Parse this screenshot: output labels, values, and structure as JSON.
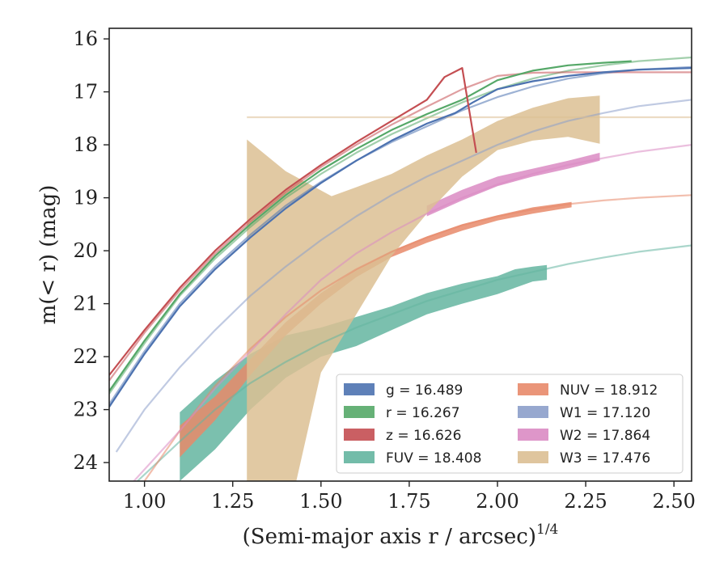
{
  "chart_data": {
    "type": "line",
    "title": "",
    "xlabel": "(Semi-major axis r / arcsec)",
    "xlabel_exponent": "1/4",
    "ylabel": "m(< r) (mag)",
    "xlim": [
      0.9,
      2.55
    ],
    "ylim": [
      24.35,
      15.8
    ],
    "y_inverted": true,
    "grid": false,
    "legend_placement": "lower-right",
    "x_ticks": [
      1.0,
      1.25,
      1.5,
      1.75,
      2.0,
      2.25,
      2.5
    ],
    "x_tick_labels": [
      "1.00",
      "1.25",
      "1.50",
      "1.75",
      "2.00",
      "2.25",
      "2.50"
    ],
    "y_ticks": [
      16,
      17,
      18,
      19,
      20,
      21,
      22,
      23,
      24
    ],
    "y_tick_labels": [
      "16",
      "17",
      "18",
      "19",
      "20",
      "21",
      "22",
      "23",
      "24"
    ],
    "series": [
      {
        "key": "g",
        "name": "g",
        "value": "16.489",
        "color": "#4c72b0",
        "model": [
          [
            0.9,
            22.9
          ],
          [
            1.0,
            21.9
          ],
          [
            1.1,
            21.0
          ],
          [
            1.2,
            20.3
          ],
          [
            1.3,
            19.7
          ],
          [
            1.4,
            19.15
          ],
          [
            1.5,
            18.7
          ],
          [
            1.6,
            18.3
          ],
          [
            1.7,
            17.95
          ],
          [
            1.8,
            17.65
          ],
          [
            1.9,
            17.35
          ],
          [
            2.0,
            17.1
          ],
          [
            2.1,
            16.9
          ],
          [
            2.2,
            16.75
          ],
          [
            2.3,
            16.65
          ],
          [
            2.4,
            16.58
          ],
          [
            2.55,
            16.53
          ]
        ],
        "data": [
          [
            0.9,
            22.95
          ],
          [
            1.0,
            21.95
          ],
          [
            1.1,
            21.05
          ],
          [
            1.2,
            20.35
          ],
          [
            1.3,
            19.75
          ],
          [
            1.4,
            19.2
          ],
          [
            1.5,
            18.72
          ],
          [
            1.6,
            18.3
          ],
          [
            1.7,
            17.92
          ],
          [
            1.8,
            17.6
          ],
          [
            1.88,
            17.4
          ],
          [
            1.93,
            17.2
          ],
          [
            2.0,
            16.95
          ],
          [
            2.1,
            16.8
          ],
          [
            2.2,
            16.7
          ],
          [
            2.3,
            16.63
          ],
          [
            2.4,
            16.58
          ],
          [
            2.55,
            16.55
          ]
        ]
      },
      {
        "key": "r",
        "name": "r",
        "value": "16.267",
        "color": "#55a868",
        "model": [
          [
            0.9,
            22.7
          ],
          [
            1.0,
            21.75
          ],
          [
            1.1,
            20.85
          ],
          [
            1.2,
            20.15
          ],
          [
            1.3,
            19.55
          ],
          [
            1.4,
            19.0
          ],
          [
            1.5,
            18.55
          ],
          [
            1.6,
            18.15
          ],
          [
            1.7,
            17.8
          ],
          [
            1.8,
            17.5
          ],
          [
            1.9,
            17.2
          ],
          [
            2.0,
            16.95
          ],
          [
            2.1,
            16.75
          ],
          [
            2.2,
            16.6
          ],
          [
            2.3,
            16.5
          ],
          [
            2.4,
            16.42
          ],
          [
            2.55,
            16.35
          ]
        ],
        "data": [
          [
            0.9,
            22.65
          ],
          [
            1.0,
            21.7
          ],
          [
            1.1,
            20.82
          ],
          [
            1.2,
            20.1
          ],
          [
            1.3,
            19.5
          ],
          [
            1.4,
            18.95
          ],
          [
            1.5,
            18.48
          ],
          [
            1.6,
            18.08
          ],
          [
            1.7,
            17.72
          ],
          [
            1.8,
            17.42
          ],
          [
            1.9,
            17.15
          ],
          [
            2.0,
            16.78
          ],
          [
            2.1,
            16.6
          ],
          [
            2.2,
            16.5
          ],
          [
            2.3,
            16.45
          ],
          [
            2.38,
            16.42
          ]
        ]
      },
      {
        "key": "z",
        "name": "z",
        "value": "16.626",
        "color": "#c44e52",
        "model": [
          [
            0.9,
            22.45
          ],
          [
            1.0,
            21.55
          ],
          [
            1.1,
            20.75
          ],
          [
            1.2,
            20.05
          ],
          [
            1.3,
            19.45
          ],
          [
            1.4,
            18.9
          ],
          [
            1.5,
            18.42
          ],
          [
            1.6,
            18.0
          ],
          [
            1.7,
            17.62
          ],
          [
            1.8,
            17.28
          ],
          [
            1.9,
            16.95
          ],
          [
            2.0,
            16.7
          ],
          [
            2.1,
            16.64
          ],
          [
            2.2,
            16.63
          ],
          [
            2.55,
            16.63
          ]
        ],
        "data": [
          [
            0.9,
            22.35
          ],
          [
            1.0,
            21.5
          ],
          [
            1.1,
            20.7
          ],
          [
            1.2,
            20.0
          ],
          [
            1.3,
            19.4
          ],
          [
            1.4,
            18.85
          ],
          [
            1.5,
            18.38
          ],
          [
            1.6,
            17.95
          ],
          [
            1.7,
            17.55
          ],
          [
            1.8,
            17.15
          ],
          [
            1.85,
            16.72
          ],
          [
            1.9,
            16.55
          ],
          [
            1.94,
            18.15
          ]
        ]
      },
      {
        "key": "FUV",
        "name": "FUV",
        "value": "18.408",
        "color": "#64b5a0",
        "model": [
          [
            0.98,
            24.35
          ],
          [
            1.1,
            23.6
          ],
          [
            1.2,
            23.0
          ],
          [
            1.3,
            22.5
          ],
          [
            1.4,
            22.1
          ],
          [
            1.5,
            21.75
          ],
          [
            1.6,
            21.45
          ],
          [
            1.7,
            21.2
          ],
          [
            1.8,
            20.95
          ],
          [
            1.9,
            20.75
          ],
          [
            2.0,
            20.55
          ],
          [
            2.1,
            20.4
          ],
          [
            2.2,
            20.25
          ],
          [
            2.3,
            20.13
          ],
          [
            2.4,
            20.02
          ],
          [
            2.55,
            19.9
          ]
        ],
        "band_upper": [
          [
            1.1,
            23.05
          ],
          [
            1.2,
            22.45
          ],
          [
            1.3,
            21.95
          ],
          [
            1.4,
            21.6
          ],
          [
            1.5,
            21.45
          ],
          [
            1.6,
            21.25
          ],
          [
            1.7,
            21.05
          ],
          [
            1.8,
            20.8
          ],
          [
            1.9,
            20.62
          ],
          [
            2.0,
            20.48
          ],
          [
            2.05,
            20.35
          ],
          [
            2.1,
            20.3
          ],
          [
            2.14,
            20.27
          ]
        ],
        "band_lower": [
          [
            1.1,
            24.35
          ],
          [
            1.2,
            23.75
          ],
          [
            1.3,
            23.0
          ],
          [
            1.4,
            22.4
          ],
          [
            1.5,
            22.0
          ],
          [
            1.6,
            21.8
          ],
          [
            1.7,
            21.5
          ],
          [
            1.8,
            21.2
          ],
          [
            1.9,
            21.0
          ],
          [
            2.0,
            20.82
          ],
          [
            2.05,
            20.7
          ],
          [
            2.1,
            20.58
          ],
          [
            2.14,
            20.55
          ]
        ]
      },
      {
        "key": "NUV",
        "name": "NUV",
        "value": "18.912",
        "color": "#e8896a",
        "model": [
          [
            1.0,
            24.35
          ],
          [
            1.1,
            23.4
          ],
          [
            1.2,
            22.55
          ],
          [
            1.3,
            21.85
          ],
          [
            1.4,
            21.25
          ],
          [
            1.5,
            20.75
          ],
          [
            1.6,
            20.35
          ],
          [
            1.7,
            20.02
          ],
          [
            1.8,
            19.75
          ],
          [
            1.9,
            19.52
          ],
          [
            2.0,
            19.35
          ],
          [
            2.1,
            19.22
          ],
          [
            2.2,
            19.12
          ],
          [
            2.3,
            19.05
          ],
          [
            2.4,
            19.0
          ],
          [
            2.55,
            18.95
          ]
        ],
        "band_upper": [
          [
            1.1,
            23.3
          ],
          [
            1.2,
            22.75
          ],
          [
            1.3,
            22.05
          ],
          [
            1.4,
            21.35
          ],
          [
            1.5,
            20.8
          ],
          [
            1.6,
            20.35
          ],
          [
            1.7,
            20.0
          ],
          [
            1.8,
            19.73
          ],
          [
            1.9,
            19.5
          ],
          [
            2.0,
            19.33
          ],
          [
            2.1,
            19.18
          ],
          [
            2.21,
            19.08
          ]
        ],
        "band_lower": [
          [
            1.1,
            23.9
          ],
          [
            1.2,
            23.2
          ],
          [
            1.3,
            22.35
          ],
          [
            1.4,
            21.6
          ],
          [
            1.5,
            21.0
          ],
          [
            1.6,
            20.5
          ],
          [
            1.7,
            20.12
          ],
          [
            1.8,
            19.85
          ],
          [
            1.9,
            19.62
          ],
          [
            2.0,
            19.43
          ],
          [
            2.1,
            19.3
          ],
          [
            2.21,
            19.18
          ]
        ]
      },
      {
        "key": "W1",
        "name": "W1",
        "value": "17.120",
        "color": "#8c9fca",
        "model": [
          [
            0.92,
            23.8
          ],
          [
            1.0,
            23.0
          ],
          [
            1.1,
            22.2
          ],
          [
            1.2,
            21.5
          ],
          [
            1.3,
            20.85
          ],
          [
            1.4,
            20.3
          ],
          [
            1.5,
            19.8
          ],
          [
            1.6,
            19.35
          ],
          [
            1.7,
            18.95
          ],
          [
            1.8,
            18.6
          ],
          [
            1.9,
            18.3
          ],
          [
            2.0,
            18.0
          ],
          [
            2.1,
            17.75
          ],
          [
            2.2,
            17.55
          ],
          [
            2.3,
            17.4
          ],
          [
            2.4,
            17.27
          ],
          [
            2.55,
            17.15
          ]
        ]
      },
      {
        "key": "W2",
        "name": "W2",
        "value": "17.864",
        "color": "#da8bc3",
        "model": [
          [
            0.97,
            24.35
          ],
          [
            1.1,
            23.4
          ],
          [
            1.2,
            22.6
          ],
          [
            1.3,
            21.9
          ],
          [
            1.4,
            21.2
          ],
          [
            1.5,
            20.55
          ],
          [
            1.6,
            20.05
          ],
          [
            1.7,
            19.65
          ],
          [
            1.8,
            19.3
          ],
          [
            1.9,
            19.0
          ],
          [
            2.0,
            18.75
          ],
          [
            2.1,
            18.55
          ],
          [
            2.2,
            18.38
          ],
          [
            2.3,
            18.25
          ],
          [
            2.4,
            18.13
          ],
          [
            2.55,
            18.0
          ]
        ],
        "band_upper": [
          [
            1.8,
            19.15
          ],
          [
            1.9,
            18.85
          ],
          [
            2.0,
            18.6
          ],
          [
            2.1,
            18.45
          ],
          [
            2.2,
            18.3
          ],
          [
            2.29,
            18.15
          ]
        ],
        "band_lower": [
          [
            1.8,
            19.35
          ],
          [
            1.9,
            19.05
          ],
          [
            2.0,
            18.78
          ],
          [
            2.1,
            18.6
          ],
          [
            2.2,
            18.45
          ],
          [
            2.29,
            18.3
          ]
        ]
      },
      {
        "key": "W3",
        "name": "W3",
        "value": "17.476",
        "color": "#dcbf93",
        "model": [
          [
            1.29,
            17.48
          ],
          [
            2.55,
            17.48
          ]
        ],
        "band_upper": [
          [
            1.29,
            17.9
          ],
          [
            1.4,
            18.5
          ],
          [
            1.53,
            18.97
          ],
          [
            1.6,
            18.8
          ],
          [
            1.7,
            18.55
          ],
          [
            1.8,
            18.2
          ],
          [
            1.9,
            17.9
          ],
          [
            2.0,
            17.55
          ],
          [
            2.1,
            17.3
          ],
          [
            2.2,
            17.12
          ],
          [
            2.29,
            17.07
          ]
        ],
        "band_lower": [
          [
            1.29,
            24.35
          ],
          [
            1.43,
            24.35
          ],
          [
            1.5,
            22.3
          ],
          [
            1.6,
            21.2
          ],
          [
            1.7,
            20.1
          ],
          [
            1.8,
            19.3
          ],
          [
            1.9,
            18.6
          ],
          [
            2.0,
            18.1
          ],
          [
            2.1,
            17.92
          ],
          [
            2.2,
            17.85
          ],
          [
            2.29,
            17.98
          ]
        ]
      }
    ],
    "legend": [
      {
        "key": "g",
        "label": "g = 16.489"
      },
      {
        "key": "NUV",
        "label": "NUV = 18.912"
      },
      {
        "key": "r",
        "label": "r = 16.267"
      },
      {
        "key": "W1",
        "label": "W1 = 17.120"
      },
      {
        "key": "z",
        "label": "z = 16.626"
      },
      {
        "key": "W2",
        "label": "W2 = 17.864"
      },
      {
        "key": "FUV",
        "label": "FUV = 18.408"
      },
      {
        "key": "W3",
        "label": "W3 = 17.476"
      }
    ]
  }
}
